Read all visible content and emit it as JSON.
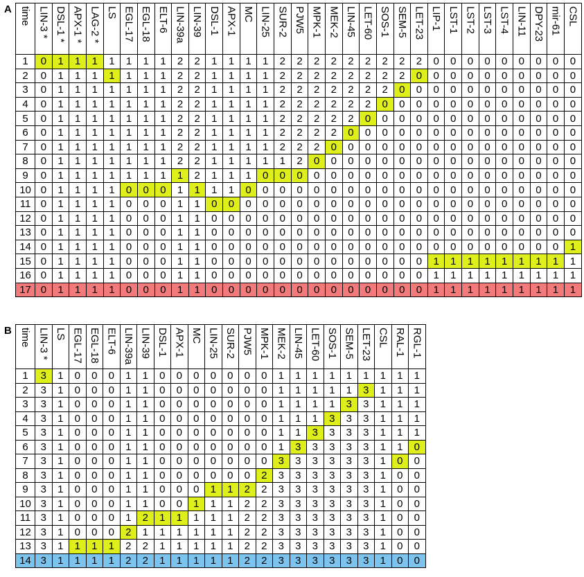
{
  "panelA": {
    "label": "A",
    "corner": "time",
    "columns": [
      "LIN-3 *",
      "DSL-1 *",
      "APX-1 *",
      "LAG-2 *",
      "LS",
      "EGL-17",
      "EGL-18",
      "ELT-6",
      "LIN-39a",
      "LIN-39",
      "DSL-1",
      "APX-1",
      "MC",
      "LIN-25",
      "SUR-2",
      "PJW5",
      "MPK-1",
      "MEK-2",
      "LIN-45",
      "LET-60",
      "SOS-1",
      "SEM-5",
      "LET-23",
      "LIP-1",
      "LST-1",
      "LST-2",
      "LST-3",
      "LST-4",
      "LIN-11",
      "DPY-23",
      "mir-61",
      "CSL"
    ],
    "rows": [
      {
        "t": "1",
        "v": [
          "0",
          "1",
          "1",
          "1",
          "1",
          "1",
          "1",
          "1",
          "2",
          "2",
          "1",
          "1",
          "1",
          "1",
          "2",
          "2",
          "2",
          "2",
          "2",
          "2",
          "2",
          "2",
          "2",
          "0",
          "0",
          "0",
          "0",
          "0",
          "0",
          "0",
          "0",
          "0"
        ],
        "h": [
          0,
          1,
          2,
          3
        ]
      },
      {
        "t": "2",
        "v": [
          "0",
          "1",
          "1",
          "1",
          "1",
          "1",
          "1",
          "1",
          "2",
          "2",
          "1",
          "1",
          "1",
          "1",
          "2",
          "2",
          "2",
          "2",
          "2",
          "2",
          "2",
          "2",
          "0",
          "0",
          "0",
          "0",
          "0",
          "0",
          "0",
          "0",
          "0",
          "0"
        ],
        "h": [
          4,
          22
        ]
      },
      {
        "t": "3",
        "v": [
          "0",
          "1",
          "1",
          "1",
          "1",
          "1",
          "1",
          "1",
          "2",
          "2",
          "1",
          "1",
          "1",
          "1",
          "2",
          "2",
          "2",
          "2",
          "2",
          "2",
          "2",
          "0",
          "0",
          "0",
          "0",
          "0",
          "0",
          "0",
          "0",
          "0",
          "0",
          "0"
        ],
        "h": [
          21
        ]
      },
      {
        "t": "4",
        "v": [
          "0",
          "1",
          "1",
          "1",
          "1",
          "1",
          "1",
          "1",
          "2",
          "2",
          "1",
          "1",
          "1",
          "1",
          "2",
          "2",
          "2",
          "2",
          "2",
          "2",
          "0",
          "0",
          "0",
          "0",
          "0",
          "0",
          "0",
          "0",
          "0",
          "0",
          "0",
          "0"
        ],
        "h": [
          20
        ]
      },
      {
        "t": "5",
        "v": [
          "0",
          "1",
          "1",
          "1",
          "1",
          "1",
          "1",
          "1",
          "2",
          "2",
          "1",
          "1",
          "1",
          "1",
          "2",
          "2",
          "2",
          "2",
          "2",
          "0",
          "0",
          "0",
          "0",
          "0",
          "0",
          "0",
          "0",
          "0",
          "0",
          "0",
          "0",
          "0"
        ],
        "h": [
          19
        ]
      },
      {
        "t": "6",
        "v": [
          "0",
          "1",
          "1",
          "1",
          "1",
          "1",
          "1",
          "1",
          "2",
          "2",
          "1",
          "1",
          "1",
          "1",
          "2",
          "2",
          "2",
          "2",
          "0",
          "0",
          "0",
          "0",
          "0",
          "0",
          "0",
          "0",
          "0",
          "0",
          "0",
          "0",
          "0",
          "0"
        ],
        "h": [
          18
        ]
      },
      {
        "t": "7",
        "v": [
          "0",
          "1",
          "1",
          "1",
          "1",
          "1",
          "1",
          "1",
          "2",
          "2",
          "1",
          "1",
          "1",
          "1",
          "2",
          "2",
          "2",
          "0",
          "0",
          "0",
          "0",
          "0",
          "0",
          "0",
          "0",
          "0",
          "0",
          "0",
          "0",
          "0",
          "0",
          "0"
        ],
        "h": [
          17
        ]
      },
      {
        "t": "8",
        "v": [
          "0",
          "1",
          "1",
          "1",
          "1",
          "1",
          "1",
          "1",
          "2",
          "2",
          "1",
          "1",
          "1",
          "1",
          "1",
          "2",
          "0",
          "0",
          "0",
          "0",
          "0",
          "0",
          "0",
          "0",
          "0",
          "0",
          "0",
          "0",
          "0",
          "0",
          "0",
          "0"
        ],
        "h": [
          16
        ]
      },
      {
        "t": "9",
        "v": [
          "0",
          "1",
          "1",
          "1",
          "1",
          "1",
          "1",
          "1",
          "1",
          "2",
          "1",
          "1",
          "1",
          "0",
          "0",
          "0",
          "0",
          "0",
          "0",
          "0",
          "0",
          "0",
          "0",
          "0",
          "0",
          "0",
          "0",
          "0",
          "0",
          "0",
          "0",
          "0"
        ],
        "h": [
          8,
          13,
          14,
          15
        ]
      },
      {
        "t": "10",
        "v": [
          "0",
          "1",
          "1",
          "1",
          "1",
          "0",
          "0",
          "0",
          "1",
          "1",
          "1",
          "1",
          "0",
          "0",
          "0",
          "0",
          "0",
          "0",
          "0",
          "0",
          "0",
          "0",
          "0",
          "0",
          "0",
          "0",
          "0",
          "0",
          "0",
          "0",
          "0",
          "0"
        ],
        "h": [
          5,
          6,
          7,
          9,
          12
        ]
      },
      {
        "t": "11",
        "v": [
          "0",
          "1",
          "1",
          "1",
          "1",
          "0",
          "0",
          "0",
          "1",
          "1",
          "0",
          "0",
          "0",
          "0",
          "0",
          "0",
          "0",
          "0",
          "0",
          "0",
          "0",
          "0",
          "0",
          "0",
          "0",
          "0",
          "0",
          "0",
          "0",
          "0",
          "0",
          "0"
        ],
        "h": [
          10,
          11
        ]
      },
      {
        "t": "12",
        "v": [
          "0",
          "1",
          "1",
          "1",
          "1",
          "0",
          "0",
          "0",
          "1",
          "1",
          "0",
          "0",
          "0",
          "0",
          "0",
          "0",
          "0",
          "0",
          "0",
          "0",
          "0",
          "0",
          "0",
          "0",
          "0",
          "0",
          "0",
          "0",
          "0",
          "0",
          "0",
          "0"
        ],
        "h": []
      },
      {
        "t": "13",
        "v": [
          "0",
          "1",
          "1",
          "1",
          "1",
          "0",
          "0",
          "0",
          "1",
          "1",
          "0",
          "0",
          "0",
          "0",
          "0",
          "0",
          "0",
          "0",
          "0",
          "0",
          "0",
          "0",
          "0",
          "0",
          "0",
          "0",
          "0",
          "0",
          "0",
          "0",
          "0",
          "0"
        ],
        "h": []
      },
      {
        "t": "14",
        "v": [
          "0",
          "1",
          "1",
          "1",
          "1",
          "0",
          "0",
          "0",
          "1",
          "1",
          "0",
          "0",
          "0",
          "0",
          "0",
          "0",
          "0",
          "0",
          "0",
          "0",
          "0",
          "0",
          "0",
          "0",
          "0",
          "0",
          "0",
          "0",
          "0",
          "0",
          "0",
          "1"
        ],
        "h": [
          31
        ]
      },
      {
        "t": "15",
        "v": [
          "0",
          "1",
          "1",
          "1",
          "1",
          "0",
          "0",
          "0",
          "1",
          "1",
          "0",
          "0",
          "0",
          "0",
          "0",
          "0",
          "0",
          "0",
          "0",
          "0",
          "0",
          "0",
          "0",
          "1",
          "1",
          "1",
          "1",
          "1",
          "1",
          "1",
          "1",
          "1"
        ],
        "h": [
          23,
          24,
          25,
          26,
          27,
          28,
          29,
          30
        ]
      },
      {
        "t": "16",
        "v": [
          "0",
          "1",
          "1",
          "1",
          "1",
          "0",
          "0",
          "0",
          "1",
          "1",
          "0",
          "0",
          "0",
          "0",
          "0",
          "0",
          "0",
          "0",
          "0",
          "0",
          "0",
          "0",
          "0",
          "1",
          "1",
          "1",
          "1",
          "1",
          "1",
          "1",
          "1",
          "1"
        ],
        "h": []
      },
      {
        "t": "17",
        "v": [
          "0",
          "1",
          "1",
          "1",
          "1",
          "0",
          "0",
          "0",
          "1",
          "1",
          "0",
          "0",
          "0",
          "0",
          "0",
          "0",
          "0",
          "0",
          "0",
          "0",
          "0",
          "0",
          "0",
          "1",
          "1",
          "1",
          "1",
          "1",
          "1",
          "1",
          "1",
          "1"
        ],
        "h": []
      }
    ],
    "highlight_color": "#dfef1b",
    "final_row_color": "#f27a7a"
  },
  "panelB": {
    "label": "B",
    "corner": "time",
    "columns": [
      "LIN-3 *",
      "LS",
      "EGL-17",
      "EGL-18",
      "ELT-6",
      "LIN-39a",
      "LIN-39",
      "DSL-1",
      "APX-1",
      "MC",
      "LIN-25",
      "SUR-2",
      "PJW5",
      "MPK-1",
      "MEK-2",
      "LIN-45",
      "LET-60",
      "SOS-1",
      "SEM-5",
      "LET-23",
      "CSL",
      "RAL-1",
      "RGL-1"
    ],
    "rows": [
      {
        "t": "1",
        "v": [
          "3",
          "1",
          "0",
          "0",
          "0",
          "1",
          "1",
          "0",
          "0",
          "0",
          "0",
          "0",
          "0",
          "0",
          "1",
          "1",
          "1",
          "1",
          "1",
          "1",
          "1",
          "1",
          "1"
        ],
        "h": [
          0
        ]
      },
      {
        "t": "2",
        "v": [
          "3",
          "1",
          "0",
          "0",
          "0",
          "1",
          "1",
          "0",
          "0",
          "0",
          "0",
          "0",
          "0",
          "0",
          "1",
          "1",
          "1",
          "1",
          "1",
          "3",
          "1",
          "1",
          "1"
        ],
        "h": [
          19
        ]
      },
      {
        "t": "3",
        "v": [
          "3",
          "1",
          "0",
          "0",
          "0",
          "1",
          "1",
          "0",
          "0",
          "0",
          "0",
          "0",
          "0",
          "0",
          "1",
          "1",
          "1",
          "1",
          "3",
          "3",
          "1",
          "1",
          "1"
        ],
        "h": [
          18
        ]
      },
      {
        "t": "4",
        "v": [
          "3",
          "1",
          "0",
          "0",
          "0",
          "1",
          "1",
          "0",
          "0",
          "0",
          "0",
          "0",
          "0",
          "0",
          "1",
          "1",
          "1",
          "3",
          "3",
          "3",
          "1",
          "1",
          "1"
        ],
        "h": [
          17
        ]
      },
      {
        "t": "5",
        "v": [
          "3",
          "1",
          "0",
          "0",
          "0",
          "1",
          "1",
          "0",
          "0",
          "0",
          "0",
          "0",
          "0",
          "0",
          "1",
          "1",
          "3",
          "3",
          "3",
          "3",
          "1",
          "1",
          "1"
        ],
        "h": [
          16
        ]
      },
      {
        "t": "6",
        "v": [
          "3",
          "1",
          "0",
          "0",
          "0",
          "1",
          "1",
          "0",
          "0",
          "0",
          "0",
          "0",
          "0",
          "0",
          "1",
          "3",
          "3",
          "3",
          "3",
          "3",
          "1",
          "1",
          "0"
        ],
        "h": [
          15,
          22
        ]
      },
      {
        "t": "7",
        "v": [
          "3",
          "1",
          "0",
          "0",
          "0",
          "1",
          "1",
          "0",
          "0",
          "0",
          "0",
          "0",
          "0",
          "0",
          "3",
          "3",
          "3",
          "3",
          "3",
          "3",
          "1",
          "0",
          "0"
        ],
        "h": [
          14,
          21
        ]
      },
      {
        "t": "8",
        "v": [
          "3",
          "1",
          "0",
          "0",
          "0",
          "1",
          "1",
          "0",
          "0",
          "0",
          "0",
          "0",
          "0",
          "2",
          "3",
          "3",
          "3",
          "3",
          "3",
          "3",
          "1",
          "0",
          "0"
        ],
        "h": [
          13
        ]
      },
      {
        "t": "9",
        "v": [
          "3",
          "1",
          "0",
          "0",
          "0",
          "1",
          "1",
          "0",
          "0",
          "0",
          "1",
          "1",
          "2",
          "2",
          "3",
          "3",
          "3",
          "3",
          "3",
          "3",
          "1",
          "0",
          "0"
        ],
        "h": [
          10,
          11,
          12
        ]
      },
      {
        "t": "10",
        "v": [
          "3",
          "1",
          "0",
          "0",
          "0",
          "1",
          "1",
          "0",
          "0",
          "1",
          "1",
          "1",
          "2",
          "2",
          "3",
          "3",
          "3",
          "3",
          "3",
          "3",
          "1",
          "0",
          "0"
        ],
        "h": [
          9
        ]
      },
      {
        "t": "11",
        "v": [
          "3",
          "1",
          "0",
          "0",
          "0",
          "1",
          "2",
          "1",
          "1",
          "1",
          "1",
          "1",
          "2",
          "2",
          "3",
          "3",
          "3",
          "3",
          "3",
          "3",
          "1",
          "0",
          "0"
        ],
        "h": [
          6,
          7,
          8
        ]
      },
      {
        "t": "12",
        "v": [
          "3",
          "1",
          "0",
          "0",
          "0",
          "2",
          "1",
          "1",
          "1",
          "1",
          "1",
          "1",
          "2",
          "2",
          "3",
          "3",
          "3",
          "3",
          "3",
          "3",
          "1",
          "0",
          "0"
        ],
        "h": [
          5
        ]
      },
      {
        "t": "13",
        "v": [
          "3",
          "1",
          "1",
          "1",
          "1",
          "2",
          "2",
          "1",
          "1",
          "1",
          "1",
          "1",
          "2",
          "2",
          "3",
          "3",
          "3",
          "3",
          "3",
          "3",
          "1",
          "0",
          "0"
        ],
        "h": [
          2,
          3,
          4
        ]
      },
      {
        "t": "14",
        "v": [
          "3",
          "1",
          "1",
          "1",
          "1",
          "2",
          "2",
          "1",
          "1",
          "1",
          "1",
          "1",
          "2",
          "2",
          "3",
          "3",
          "3",
          "3",
          "3",
          "3",
          "1",
          "0",
          "0"
        ],
        "h": []
      }
    ],
    "highlight_color": "#dfef1b",
    "final_row_color": "#7cc3ee"
  }
}
